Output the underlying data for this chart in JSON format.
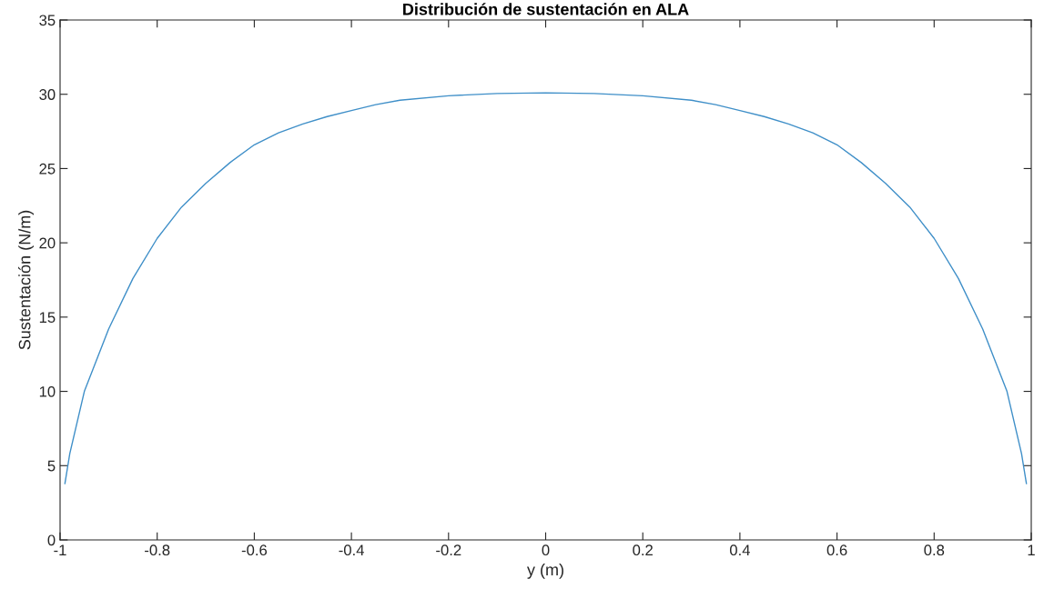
{
  "chart_data": {
    "type": "line",
    "title": "Distribución de sustentación en ALA",
    "xlabel": "y (m)",
    "ylabel": "Sustentación (N/m)",
    "x": [
      -0.99,
      -0.98,
      -0.95,
      -0.9,
      -0.85,
      -0.8,
      -0.75,
      -0.7,
      -0.65,
      -0.6,
      -0.55,
      -0.5,
      -0.45,
      -0.4,
      -0.35,
      -0.3,
      -0.2,
      -0.1,
      0,
      0.1,
      0.2,
      0.3,
      0.35,
      0.4,
      0.45,
      0.5,
      0.55,
      0.6,
      0.65,
      0.7,
      0.75,
      0.8,
      0.85,
      0.9,
      0.95,
      0.98,
      0.99
    ],
    "series": [
      {
        "color": "#3f8fc8",
        "values": [
          3.8,
          5.8,
          10.0,
          14.2,
          17.6,
          20.3,
          22.4,
          24.0,
          25.4,
          26.6,
          27.4,
          28.0,
          28.5,
          28.9,
          29.3,
          29.6,
          29.9,
          30.05,
          30.1,
          30.05,
          29.9,
          29.6,
          29.3,
          28.9,
          28.5,
          28.0,
          27.4,
          26.6,
          25.4,
          24.0,
          22.4,
          20.3,
          17.6,
          14.2,
          10.0,
          5.8,
          3.8
        ]
      }
    ],
    "xlim": [
      -1,
      1
    ],
    "xticks": [
      -1,
      -0.8,
      -0.6,
      -0.4,
      -0.2,
      0,
      0.2,
      0.4,
      0.6,
      0.8,
      1
    ],
    "ylim": [
      0,
      35
    ],
    "yticks": [
      0,
      5,
      10,
      15,
      20,
      25,
      30,
      35
    ],
    "grid": false,
    "legend": false,
    "marker": "none",
    "line_style": "solid"
  }
}
